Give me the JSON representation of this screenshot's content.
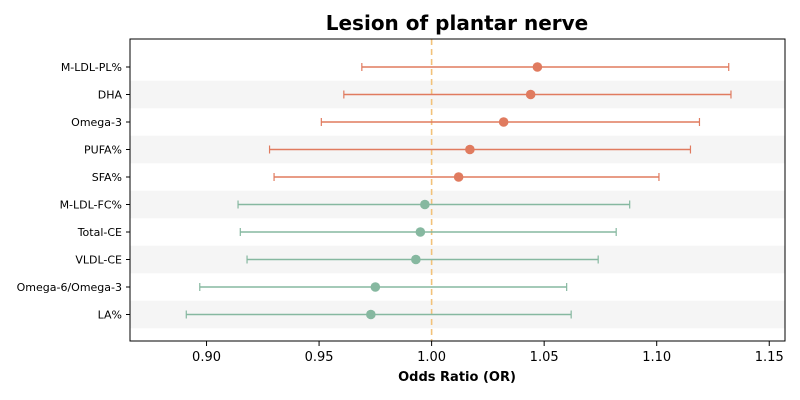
{
  "chart_data": {
    "type": "forest",
    "title": "Lesion of plantar nerve",
    "xlabel": "Odds Ratio (OR)",
    "ylabel": "",
    "xlim": [
      0.866,
      1.157
    ],
    "xticks": [
      "0.90",
      "0.95",
      "1.00",
      "1.05",
      "1.10",
      "1.15"
    ],
    "xtick_values": [
      0.9,
      0.95,
      1.0,
      1.05,
      1.1,
      1.15
    ],
    "reference_line": 1.0,
    "grid": false,
    "colors": {
      "risk": "#e07b5f",
      "protective": "#86b8a0",
      "reference": "#f2c27a",
      "band": "#f5f5f5"
    },
    "rows": [
      {
        "label": "M-LDL-PL%",
        "or": 1.047,
        "lower": 0.969,
        "upper": 1.132,
        "group": "risk"
      },
      {
        "label": "DHA",
        "or": 1.044,
        "lower": 0.961,
        "upper": 1.133,
        "group": "risk"
      },
      {
        "label": "Omega-3",
        "or": 1.032,
        "lower": 0.951,
        "upper": 1.119,
        "group": "risk"
      },
      {
        "label": "PUFA%",
        "or": 1.017,
        "lower": 0.928,
        "upper": 1.115,
        "group": "risk"
      },
      {
        "label": "SFA%",
        "or": 1.012,
        "lower": 0.93,
        "upper": 1.101,
        "group": "risk"
      },
      {
        "label": "M-LDL-FC%",
        "or": 0.997,
        "lower": 0.914,
        "upper": 1.088,
        "group": "protective"
      },
      {
        "label": "Total-CE",
        "or": 0.995,
        "lower": 0.915,
        "upper": 1.082,
        "group": "protective"
      },
      {
        "label": "VLDL-CE",
        "or": 0.993,
        "lower": 0.918,
        "upper": 1.074,
        "group": "protective"
      },
      {
        "label": "Omega-6/Omega-3",
        "or": 0.975,
        "lower": 0.897,
        "upper": 1.06,
        "group": "protective"
      },
      {
        "label": "LA%",
        "or": 0.973,
        "lower": 0.891,
        "upper": 1.062,
        "group": "protective"
      }
    ]
  }
}
